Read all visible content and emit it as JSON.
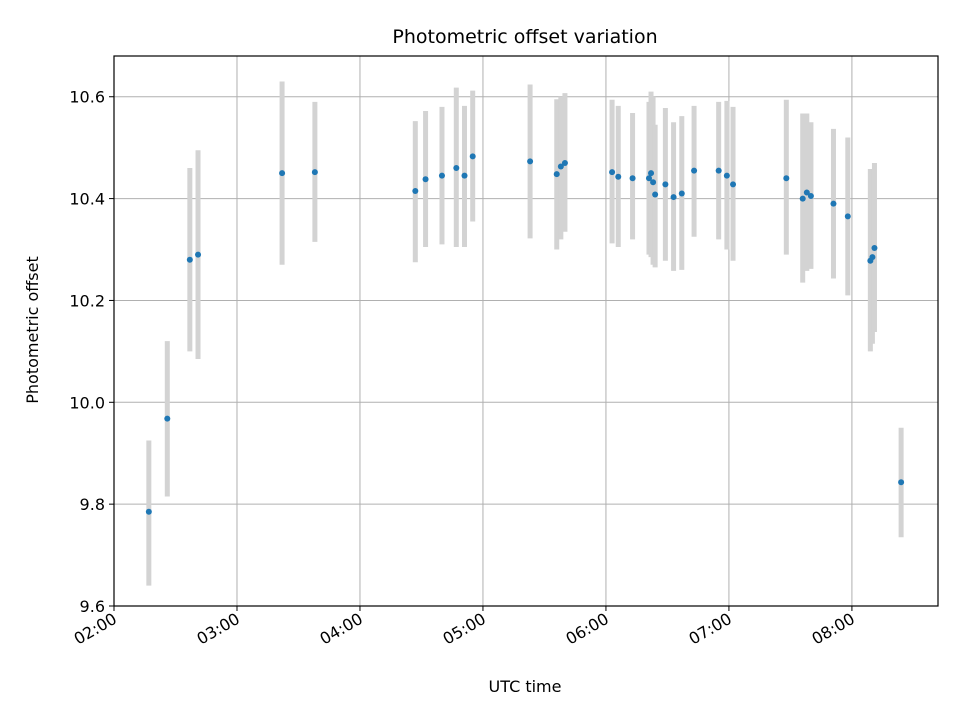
{
  "chart_data": {
    "type": "scatter",
    "title": "Photometric offset variation",
    "xlabel": "UTC time",
    "ylabel": "Photometric offset",
    "xlim_hours": [
      2.0,
      8.7
    ],
    "ylim": [
      9.6,
      10.68
    ],
    "x_ticks": [
      {
        "h": 2,
        "label": "02:00"
      },
      {
        "h": 3,
        "label": "03:00"
      },
      {
        "h": 4,
        "label": "04:00"
      },
      {
        "h": 5,
        "label": "05:00"
      },
      {
        "h": 6,
        "label": "06:00"
      },
      {
        "h": 7,
        "label": "07:00"
      },
      {
        "h": 8,
        "label": "08:00"
      }
    ],
    "y_ticks": [
      {
        "v": 9.6,
        "label": "9.6"
      },
      {
        "v": 9.8,
        "label": "9.8"
      },
      {
        "v": 10.0,
        "label": "10.0"
      },
      {
        "v": 10.2,
        "label": "10.2"
      },
      {
        "v": 10.4,
        "label": "10.4"
      },
      {
        "v": 10.6,
        "label": "10.6"
      }
    ],
    "grid": true,
    "colors": {
      "point": "#1f77b4",
      "errorbar": "#d3d3d3",
      "grid": "#b0b0b0"
    },
    "points": [
      {
        "t": "02:17",
        "y": 9.785,
        "lo": 9.64,
        "hi": 9.925
      },
      {
        "t": "02:26",
        "y": 9.968,
        "lo": 9.815,
        "hi": 10.12
      },
      {
        "t": "02:37",
        "y": 10.28,
        "lo": 10.1,
        "hi": 10.46
      },
      {
        "t": "02:41",
        "y": 10.29,
        "lo": 10.085,
        "hi": 10.495
      },
      {
        "t": "03:22",
        "y": 10.45,
        "lo": 10.27,
        "hi": 10.63
      },
      {
        "t": "03:38",
        "y": 10.452,
        "lo": 10.315,
        "hi": 10.59
      },
      {
        "t": "04:27",
        "y": 10.415,
        "lo": 10.275,
        "hi": 10.552
      },
      {
        "t": "04:32",
        "y": 10.438,
        "lo": 10.305,
        "hi": 10.572
      },
      {
        "t": "04:40",
        "y": 10.445,
        "lo": 10.31,
        "hi": 10.58
      },
      {
        "t": "04:47",
        "y": 10.46,
        "lo": 10.305,
        "hi": 10.618
      },
      {
        "t": "04:51",
        "y": 10.445,
        "lo": 10.305,
        "hi": 10.582
      },
      {
        "t": "04:55",
        "y": 10.483,
        "lo": 10.355,
        "hi": 10.612
      },
      {
        "t": "05:23",
        "y": 10.473,
        "lo": 10.322,
        "hi": 10.624
      },
      {
        "t": "05:36",
        "y": 10.448,
        "lo": 10.3,
        "hi": 10.595
      },
      {
        "t": "05:38",
        "y": 10.463,
        "lo": 10.32,
        "hi": 10.6
      },
      {
        "t": "05:40",
        "y": 10.47,
        "lo": 10.335,
        "hi": 10.607
      },
      {
        "t": "06:03",
        "y": 10.452,
        "lo": 10.312,
        "hi": 10.594
      },
      {
        "t": "06:06",
        "y": 10.443,
        "lo": 10.305,
        "hi": 10.582
      },
      {
        "t": "06:13",
        "y": 10.44,
        "lo": 10.32,
        "hi": 10.568
      },
      {
        "t": "06:21",
        "y": 10.44,
        "lo": 10.29,
        "hi": 10.59
      },
      {
        "t": "06:22",
        "y": 10.45,
        "lo": 10.285,
        "hi": 10.61
      },
      {
        "t": "06:23",
        "y": 10.432,
        "lo": 10.27,
        "hi": 10.6
      },
      {
        "t": "06:24",
        "y": 10.408,
        "lo": 10.265,
        "hi": 10.545
      },
      {
        "t": "06:29",
        "y": 10.428,
        "lo": 10.278,
        "hi": 10.578
      },
      {
        "t": "06:33",
        "y": 10.403,
        "lo": 10.258,
        "hi": 10.55
      },
      {
        "t": "06:37",
        "y": 10.41,
        "lo": 10.26,
        "hi": 10.562
      },
      {
        "t": "06:43",
        "y": 10.455,
        "lo": 10.325,
        "hi": 10.582
      },
      {
        "t": "06:55",
        "y": 10.455,
        "lo": 10.32,
        "hi": 10.59
      },
      {
        "t": "06:59",
        "y": 10.445,
        "lo": 10.3,
        "hi": 10.592
      },
      {
        "t": "07:02",
        "y": 10.428,
        "lo": 10.278,
        "hi": 10.58
      },
      {
        "t": "07:28",
        "y": 10.44,
        "lo": 10.29,
        "hi": 10.594
      },
      {
        "t": "07:36",
        "y": 10.4,
        "lo": 10.235,
        "hi": 10.567
      },
      {
        "t": "07:38",
        "y": 10.412,
        "lo": 10.258,
        "hi": 10.567
      },
      {
        "t": "07:40",
        "y": 10.405,
        "lo": 10.262,
        "hi": 10.55
      },
      {
        "t": "07:51",
        "y": 10.39,
        "lo": 10.243,
        "hi": 10.537
      },
      {
        "t": "07:58",
        "y": 10.365,
        "lo": 10.21,
        "hi": 10.52
      },
      {
        "t": "08:09",
        "y": 10.278,
        "lo": 10.1,
        "hi": 10.458
      },
      {
        "t": "08:10",
        "y": 10.285,
        "lo": 10.115,
        "hi": 10.455
      },
      {
        "t": "08:11",
        "y": 10.303,
        "lo": 10.138,
        "hi": 10.47
      },
      {
        "t": "08:24",
        "y": 9.843,
        "lo": 9.735,
        "hi": 9.95
      }
    ]
  }
}
